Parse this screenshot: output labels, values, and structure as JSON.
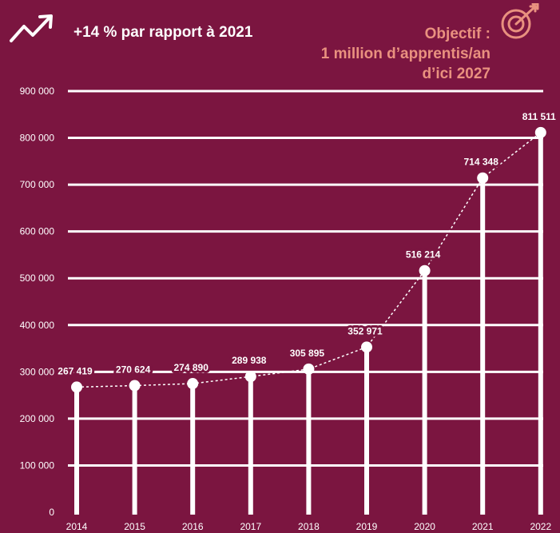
{
  "header": {
    "growth_note": "+14 % par rapport à 2021",
    "objective_line1": "Objectif :",
    "objective_line2": "1 million d’apprentis/an",
    "objective_line3": "d’ici 2027"
  },
  "icons": {
    "trend": "trend-up-arrow-icon",
    "target": "target-with-arrow-icon"
  },
  "colors": {
    "background": "#7b1540",
    "foreground": "#ffffff",
    "objective_text": "#e9917f"
  },
  "chart_data": {
    "type": "bar",
    "categories": [
      "2014",
      "2015",
      "2016",
      "2017",
      "2018",
      "2019",
      "2020",
      "2021",
      "2022"
    ],
    "values": [
      267419,
      270624,
      274890,
      289938,
      305895,
      352971,
      516214,
      714348,
      811511
    ],
    "labels": [
      "267 419",
      "270 624",
      "274 890",
      "289 938",
      "305 895",
      "352 971",
      "516 214",
      "714 348",
      "811 511"
    ],
    "ylim": [
      0,
      900000
    ],
    "yticks": [
      0,
      100000,
      200000,
      300000,
      400000,
      500000,
      600000,
      700000,
      800000,
      900000
    ],
    "ytick_labels": [
      "0",
      "100 000",
      "200 000",
      "300 000",
      "400 000",
      "500 000",
      "600 000",
      "700 000",
      "800 000",
      "900 000"
    ],
    "grid": true,
    "title": "",
    "xlabel": "",
    "ylabel": ""
  }
}
